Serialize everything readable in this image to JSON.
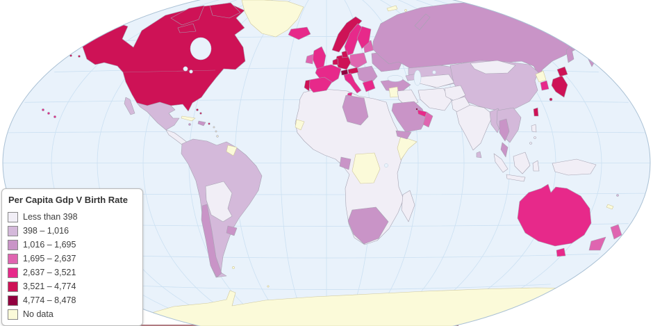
{
  "legend": {
    "title": "Per Capita Gdp V Birth Rate",
    "items": [
      {
        "label": "Less than 398",
        "color": "#f1eef6"
      },
      {
        "label": "398 – 1,016",
        "color": "#d4b9da"
      },
      {
        "label": "1,016 – 1,695",
        "color": "#c994c7"
      },
      {
        "label": "1,695 – 2,637",
        "color": "#df65b0"
      },
      {
        "label": "2,637 – 3,521",
        "color": "#e7298a"
      },
      {
        "label": "3,521 – 4,774",
        "color": "#ce1256"
      },
      {
        "label": "4,774 – 8,478",
        "color": "#91003f"
      },
      {
        "label": "No data",
        "color": "#fbfad9"
      }
    ]
  },
  "map": {
    "ocean_color": "#e9f2fb",
    "graticule_color": "#cbe0f2",
    "outline_color": "#a9c0d4",
    "regions": {
      "north-america": 5,
      "greenland": 7,
      "mexico": 1,
      "central-america": 0,
      "panama": 1,
      "cuba": 7,
      "hispaniola": 2,
      "jamaica": 2,
      "bahamas": 5,
      "puerto-rico": 5,
      "lesser-antilles": 7,
      "trinidad": 7,
      "hawaii": 4,
      "south-america": 1,
      "bolivia-paraguay": 0,
      "chile": 2,
      "uruguay": 2,
      "french-guiana": 7,
      "falklands": 7,
      "south-georgia": 7,
      "iceland": 4,
      "norway": 5,
      "sweden": 4,
      "finland": 4,
      "denmark": 5,
      "uk": 4,
      "ireland": 3,
      "france": 4,
      "spain": 4,
      "portugal": 5,
      "germany": 5,
      "benelux": 5,
      "switzerland": 6,
      "austria": 5,
      "italy": 4,
      "sicily": 4,
      "poland-czech": 3,
      "baltics": 3,
      "balkans": 2,
      "greece": 4,
      "ukraine-belarus": 2,
      "russia": 2,
      "novaya-zemlya": 2,
      "svalbard": 7,
      "sakhalin": 2,
      "kazakhstan": 1,
      "central-asia": 0,
      "caucasus": 1,
      "turkey": 2,
      "syria": 7,
      "iraq": 0,
      "iran": 0,
      "saudi-arabia": 2,
      "yemen": 2,
      "oman": 3,
      "uae": 4,
      "qatar": 6,
      "afghanistan": 0,
      "pakistan": 0,
      "india": 0,
      "sri-lanka": 1,
      "myanmar": 1,
      "indochina": 1,
      "thailand": 2,
      "malaysia": 2,
      "china": 1,
      "mongolia": 0,
      "north-korea": 7,
      "south-korea": 4,
      "japan": 5,
      "taiwan": 5,
      "philippines": 0,
      "indonesia": 0,
      "new-guinea": 0,
      "australia": 4,
      "tasmania": 4,
      "new-zealand": 3,
      "fiji": 1,
      "new-caledonia": 7,
      "antarctica": 7,
      "africa": 0,
      "western-sahara": 7,
      "libya": 2,
      "drc": 7,
      "gabon": 2,
      "somalia": 7,
      "south-africa": 2,
      "madagascar": 0
    }
  }
}
